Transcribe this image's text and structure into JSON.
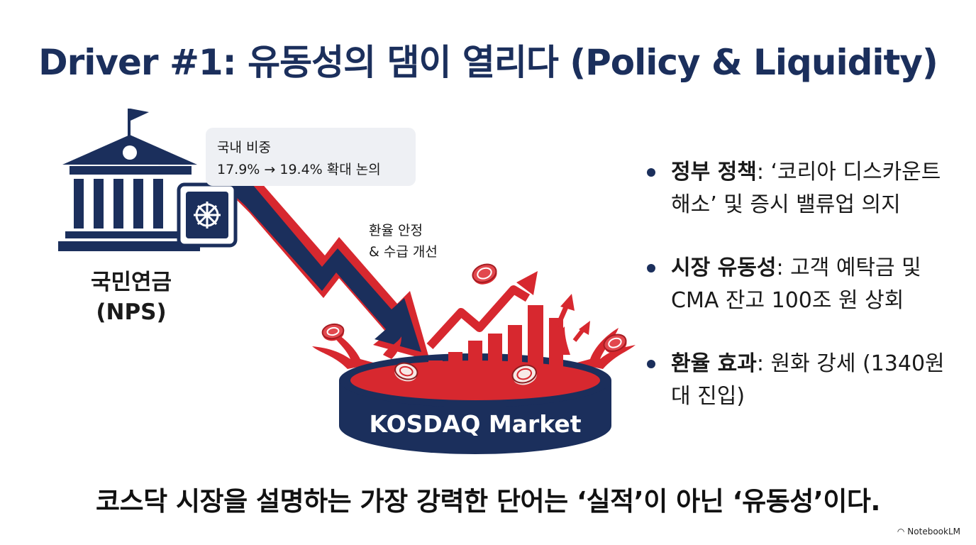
{
  "title": "Driver #1: 유동성의 댐이 열리다 (Policy & Liquidity)",
  "nps": {
    "label_line1": "국민연금",
    "label_line2": "(NPS)"
  },
  "callout": {
    "line1": "국내 비중",
    "line2": "17.9% → 19.4% 확대 논의"
  },
  "fx_label": {
    "line1": "환율 안정",
    "line2": "& 수급 개선"
  },
  "market": {
    "label": "KOSDAQ Market"
  },
  "bullets": [
    {
      "head": "정부 정책",
      "text": ": ‘코리아 디스카운트 해소’ 및 증시 밸류업 의지"
    },
    {
      "head": "시장 유동성",
      "text": ": 고객 예탁금 및 CMA 잔고 100조 원 상회"
    },
    {
      "head": "환율 효과",
      "text": ": 원화 강세 (1340원대 진입)"
    }
  ],
  "bottom_text": "코스닥 시장을 설명하는 가장 강력한 단어는 ‘실적’이 아닌 ‘유동성’이다.",
  "brand": "NotebookLM",
  "colors": {
    "navy": "#1b2f5c",
    "red": "#d7282f",
    "callout_bg": "#eef0f4"
  }
}
